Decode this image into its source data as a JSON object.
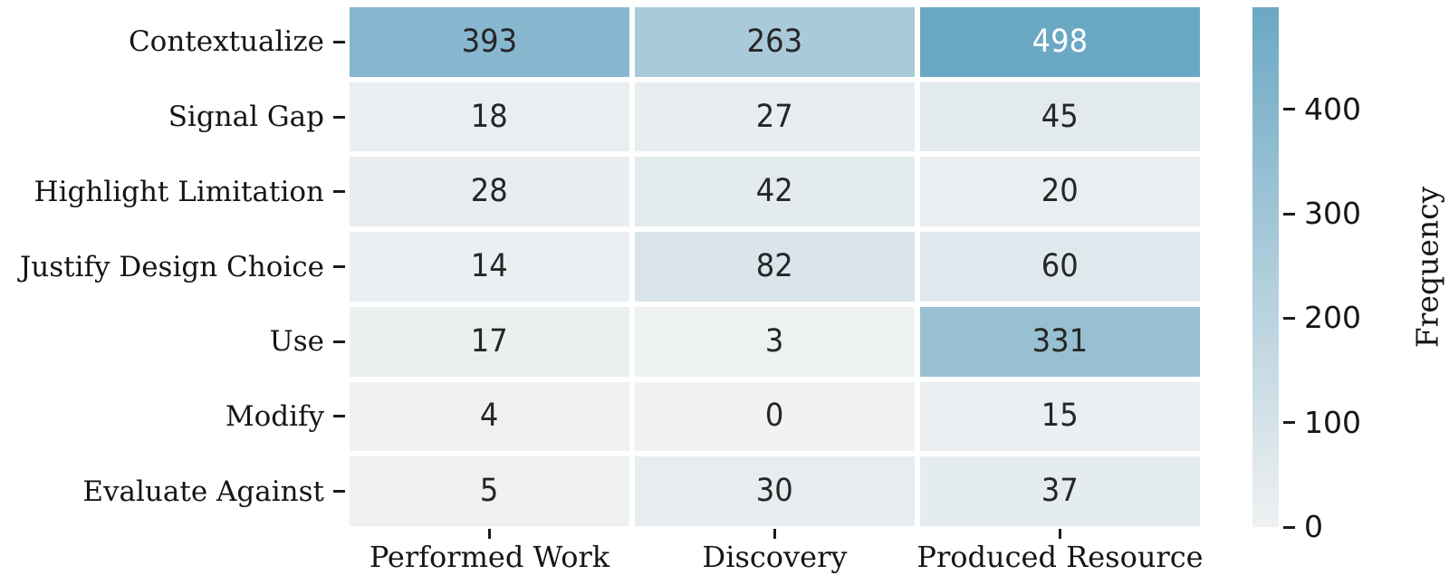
{
  "chart_data": {
    "type": "heatmap",
    "rows": [
      "Contextualize",
      "Signal Gap",
      "Highlight Limitation",
      "Justify Design Choice",
      "Use",
      "Modify",
      "Evaluate Against"
    ],
    "columns": [
      "Performed Work",
      "Discovery",
      "Produced Resource"
    ],
    "values": [
      [
        393,
        263,
        498
      ],
      [
        18,
        27,
        45
      ],
      [
        28,
        42,
        20
      ],
      [
        14,
        82,
        60
      ],
      [
        17,
        3,
        331
      ],
      [
        4,
        0,
        15
      ],
      [
        5,
        30,
        37
      ]
    ],
    "colorbar_label": "Frequency",
    "colorbar_ticks": [
      0,
      100,
      200,
      300,
      400
    ],
    "vmin": 0,
    "vmax": 498,
    "colormap": {
      "low": "#eff1f2",
      "high": "#6ba8c4",
      "light_text_threshold": 0.85
    },
    "annotation_dark_text": "#262626",
    "annotation_light_text": "#ffffff",
    "grid_gap_color": "#ffffff",
    "legend_position": "right"
  }
}
